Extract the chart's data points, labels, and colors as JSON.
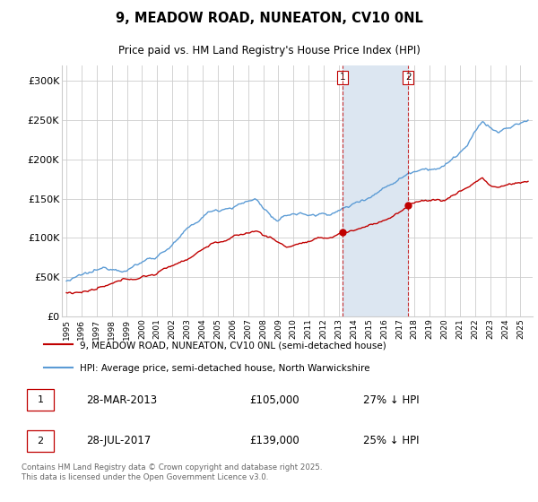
{
  "title1": "9, MEADOW ROAD, NUNEATON, CV10 0NL",
  "title2": "Price paid vs. HM Land Registry's House Price Index (HPI)",
  "legend_line1": "9, MEADOW ROAD, NUNEATON, CV10 0NL (semi-detached house)",
  "legend_line2": "HPI: Average price, semi-detached house, North Warwickshire",
  "footer": "Contains HM Land Registry data © Crown copyright and database right 2025.\nThis data is licensed under the Open Government Licence v3.0.",
  "sale1_date": "28-MAR-2013",
  "sale1_price": 105000,
  "sale1_pct": "27% ↓ HPI",
  "sale2_date": "28-JUL-2017",
  "sale2_price": 139000,
  "sale2_pct": "25% ↓ HPI",
  "sale1_year": 2013.24,
  "sale2_year": 2017.57,
  "ylim": [
    0,
    320000
  ],
  "yticks": [
    0,
    50000,
    100000,
    150000,
    200000,
    250000,
    300000
  ],
  "ytick_labels": [
    "£0",
    "£50K",
    "£100K",
    "£150K",
    "£200K",
    "£250K",
    "£300K"
  ],
  "hpi_color": "#5b9bd5",
  "price_color": "#c00000",
  "shade_color": "#dce6f1",
  "bg_color": "#ffffff",
  "grid_color": "#cccccc"
}
